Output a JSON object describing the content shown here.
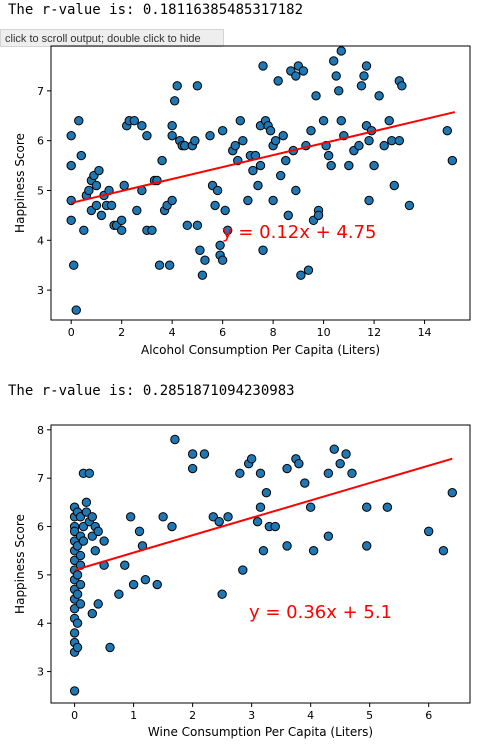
{
  "outputs": [
    {
      "text": "The r-value is: 0.18116385485317182"
    },
    {
      "text": "The r-value is: 0.2851871094230983"
    }
  ],
  "tooltip": "click to scroll output; double click to hide",
  "colors": {
    "points": "#1f77b4",
    "edge": "#000000",
    "fit": "#ff0000"
  },
  "chart_data": [
    {
      "type": "scatter",
      "xlabel": "Alcohol Consumption Per Capita (Liters)",
      "ylabel": "Happiness Score",
      "xlim": [
        -0.8,
        15.8
      ],
      "ylim": [
        2.4,
        7.9
      ],
      "xticks": [
        0,
        2,
        4,
        6,
        8,
        10,
        12,
        14
      ],
      "yticks": [
        3,
        4,
        5,
        6,
        7
      ],
      "fit": {
        "slope": 0.12,
        "intercept": 4.75,
        "x_range": [
          0,
          15.2
        ]
      },
      "equation": "y = 0.12x + 4.75",
      "points": [
        [
          0,
          6.1
        ],
        [
          0,
          5.5
        ],
        [
          0,
          4.8
        ],
        [
          0,
          4.4
        ],
        [
          0.1,
          3.5
        ],
        [
          0.2,
          2.6
        ],
        [
          0.3,
          6.4
        ],
        [
          0.4,
          5.7
        ],
        [
          0.5,
          4.2
        ],
        [
          0.6,
          4.9
        ],
        [
          0.7,
          5.0
        ],
        [
          0.8,
          5.2
        ],
        [
          0.8,
          4.6
        ],
        [
          0.9,
          5.3
        ],
        [
          1.0,
          5.1
        ],
        [
          1.0,
          4.7
        ],
        [
          1.1,
          5.4
        ],
        [
          1.2,
          4.5
        ],
        [
          1.3,
          4.9
        ],
        [
          1.4,
          4.7
        ],
        [
          1.5,
          5.0
        ],
        [
          1.6,
          4.7
        ],
        [
          1.7,
          4.3
        ],
        [
          1.8,
          4.3
        ],
        [
          2.0,
          4.4
        ],
        [
          2.0,
          4.2
        ],
        [
          2.1,
          5.1
        ],
        [
          2.2,
          6.3
        ],
        [
          2.3,
          6.4
        ],
        [
          2.5,
          6.4
        ],
        [
          2.6,
          4.6
        ],
        [
          2.8,
          6.3
        ],
        [
          2.8,
          5.0
        ],
        [
          3.0,
          6.1
        ],
        [
          3.0,
          4.2
        ],
        [
          3.2,
          4.2
        ],
        [
          3.3,
          5.2
        ],
        [
          3.4,
          5.2
        ],
        [
          3.5,
          3.5
        ],
        [
          3.6,
          5.6
        ],
        [
          3.7,
          4.6
        ],
        [
          3.8,
          4.7
        ],
        [
          3.9,
          3.5
        ],
        [
          4.0,
          6.3
        ],
        [
          4.0,
          6.1
        ],
        [
          4.0,
          4.8
        ],
        [
          4.1,
          6.8
        ],
        [
          4.2,
          7.1
        ],
        [
          4.3,
          6.0
        ],
        [
          4.4,
          5.9
        ],
        [
          4.5,
          5.9
        ],
        [
          4.6,
          4.3
        ],
        [
          4.8,
          5.9
        ],
        [
          4.9,
          6.0
        ],
        [
          5.0,
          7.1
        ],
        [
          5.0,
          4.3
        ],
        [
          5.1,
          3.8
        ],
        [
          5.2,
          3.3
        ],
        [
          5.3,
          3.6
        ],
        [
          5.5,
          6.1
        ],
        [
          5.6,
          5.1
        ],
        [
          5.7,
          4.7
        ],
        [
          5.8,
          5.0
        ],
        [
          5.9,
          3.9
        ],
        [
          5.9,
          3.7
        ],
        [
          6.0,
          3.6
        ],
        [
          6.0,
          6.2
        ],
        [
          6.1,
          4.6
        ],
        [
          6.2,
          4.2
        ],
        [
          6.4,
          5.8
        ],
        [
          6.5,
          5.9
        ],
        [
          6.6,
          5.6
        ],
        [
          6.7,
          6.4
        ],
        [
          6.8,
          6.0
        ],
        [
          7.0,
          4.8
        ],
        [
          7.1,
          5.7
        ],
        [
          7.2,
          5.4
        ],
        [
          7.3,
          5.7
        ],
        [
          7.4,
          5.1
        ],
        [
          7.5,
          6.3
        ],
        [
          7.5,
          5.5
        ],
        [
          7.6,
          7.5
        ],
        [
          7.6,
          3.8
        ],
        [
          7.7,
          6.4
        ],
        [
          7.8,
          6.3
        ],
        [
          7.9,
          6.2
        ],
        [
          8.0,
          4.8
        ],
        [
          8.0,
          5.9
        ],
        [
          8.1,
          6.0
        ],
        [
          8.2,
          7.2
        ],
        [
          8.3,
          5.3
        ],
        [
          8.4,
          6.1
        ],
        [
          8.5,
          5.6
        ],
        [
          8.6,
          4.5
        ],
        [
          8.7,
          7.4
        ],
        [
          8.8,
          5.8
        ],
        [
          8.9,
          5.0
        ],
        [
          8.9,
          7.3
        ],
        [
          9.0,
          7.5
        ],
        [
          9.1,
          3.3
        ],
        [
          9.2,
          7.4
        ],
        [
          9.3,
          5.9
        ],
        [
          9.4,
          3.4
        ],
        [
          9.5,
          6.2
        ],
        [
          9.6,
          4.4
        ],
        [
          9.7,
          6.9
        ],
        [
          9.8,
          4.6
        ],
        [
          9.8,
          4.5
        ],
        [
          10.0,
          6.4
        ],
        [
          10.1,
          5.9
        ],
        [
          10.2,
          5.7
        ],
        [
          10.3,
          5.5
        ],
        [
          10.4,
          7.6
        ],
        [
          10.5,
          7.3
        ],
        [
          10.6,
          7.0
        ],
        [
          10.7,
          7.8
        ],
        [
          10.7,
          6.4
        ],
        [
          10.8,
          6.1
        ],
        [
          11.0,
          5.5
        ],
        [
          11.2,
          5.8
        ],
        [
          11.4,
          5.9
        ],
        [
          11.5,
          7.1
        ],
        [
          11.6,
          7.3
        ],
        [
          11.7,
          7.5
        ],
        [
          11.7,
          6.3
        ],
        [
          11.8,
          6.0
        ],
        [
          11.8,
          4.8
        ],
        [
          11.9,
          6.2
        ],
        [
          12.0,
          5.5
        ],
        [
          12.2,
          6.9
        ],
        [
          12.4,
          5.9
        ],
        [
          12.6,
          6.4
        ],
        [
          12.7,
          6.0
        ],
        [
          12.8,
          5.1
        ],
        [
          13.0,
          7.2
        ],
        [
          13.0,
          6.0
        ],
        [
          13.1,
          7.1
        ],
        [
          13.4,
          4.7
        ],
        [
          14.9,
          6.2
        ],
        [
          15.1,
          5.6
        ]
      ]
    },
    {
      "type": "scatter",
      "xlabel": "Wine Consumption Per Capita (Liters)",
      "ylabel": "Happiness Score",
      "xlim": [
        -0.4,
        6.7
      ],
      "ylim": [
        2.35,
        8.1
      ],
      "xticks": [
        0,
        1,
        2,
        3,
        4,
        5,
        6
      ],
      "yticks": [
        3,
        4,
        5,
        6,
        7,
        8
      ],
      "fit": {
        "slope": 0.36,
        "intercept": 5.1,
        "x_range": [
          0,
          6.4
        ]
      },
      "equation": "y = 0.36x + 5.1",
      "points": [
        [
          0,
          6.4
        ],
        [
          0,
          6.2
        ],
        [
          0,
          6.0
        ],
        [
          0,
          5.9
        ],
        [
          0,
          5.7
        ],
        [
          0,
          5.5
        ],
        [
          0,
          5.3
        ],
        [
          0,
          5.1
        ],
        [
          0,
          4.9
        ],
        [
          0,
          4.7
        ],
        [
          0,
          4.5
        ],
        [
          0,
          4.3
        ],
        [
          0,
          4.1
        ],
        [
          0,
          3.8
        ],
        [
          0,
          3.6
        ],
        [
          0,
          3.4
        ],
        [
          0,
          2.6
        ],
        [
          0.05,
          6.3
        ],
        [
          0.05,
          5.6
        ],
        [
          0.05,
          5.0
        ],
        [
          0.05,
          4.6
        ],
        [
          0.05,
          4.0
        ],
        [
          0.05,
          3.5
        ],
        [
          0.1,
          6.2
        ],
        [
          0.1,
          5.8
        ],
        [
          0.1,
          5.4
        ],
        [
          0.1,
          5.2
        ],
        [
          0.1,
          4.8
        ],
        [
          0.1,
          4.4
        ],
        [
          0.15,
          7.1
        ],
        [
          0.15,
          6.0
        ],
        [
          0.15,
          5.7
        ],
        [
          0.2,
          6.3
        ],
        [
          0.2,
          6.5
        ],
        [
          0.25,
          7.1
        ],
        [
          0.25,
          6.1
        ],
        [
          0.3,
          6.2
        ],
        [
          0.3,
          5.8
        ],
        [
          0.3,
          4.2
        ],
        [
          0.35,
          6.0
        ],
        [
          0.35,
          5.5
        ],
        [
          0.4,
          5.9
        ],
        [
          0.4,
          4.4
        ],
        [
          0.5,
          5.7
        ],
        [
          0.5,
          5.2
        ],
        [
          0.6,
          3.5
        ],
        [
          0.75,
          4.6
        ],
        [
          0.85,
          5.2
        ],
        [
          0.95,
          6.2
        ],
        [
          1.0,
          4.8
        ],
        [
          1.1,
          5.9
        ],
        [
          1.15,
          5.6
        ],
        [
          1.2,
          4.9
        ],
        [
          1.4,
          4.8
        ],
        [
          1.5,
          6.2
        ],
        [
          1.65,
          6.0
        ],
        [
          1.7,
          7.8
        ],
        [
          2.0,
          7.2
        ],
        [
          2.0,
          7.5
        ],
        [
          2.2,
          7.5
        ],
        [
          2.35,
          6.2
        ],
        [
          2.45,
          6.1
        ],
        [
          2.5,
          4.6
        ],
        [
          2.6,
          6.2
        ],
        [
          2.8,
          7.1
        ],
        [
          2.85,
          5.1
        ],
        [
          2.95,
          7.3
        ],
        [
          3.0,
          7.4
        ],
        [
          3.1,
          6.1
        ],
        [
          3.15,
          6.4
        ],
        [
          3.15,
          7.1
        ],
        [
          3.2,
          5.5
        ],
        [
          3.25,
          6.7
        ],
        [
          3.3,
          6.0
        ],
        [
          3.4,
          6.0
        ],
        [
          3.6,
          7.2
        ],
        [
          3.6,
          5.6
        ],
        [
          3.75,
          7.4
        ],
        [
          3.8,
          7.3
        ],
        [
          3.9,
          6.9
        ],
        [
          4.0,
          6.4
        ],
        [
          4.05,
          5.5
        ],
        [
          4.3,
          7.1
        ],
        [
          4.3,
          5.8
        ],
        [
          4.4,
          7.6
        ],
        [
          4.5,
          7.3
        ],
        [
          4.6,
          7.5
        ],
        [
          4.7,
          7.1
        ],
        [
          4.95,
          6.4
        ],
        [
          4.95,
          5.6
        ],
        [
          5.3,
          6.4
        ],
        [
          6.0,
          5.9
        ],
        [
          6.25,
          5.5
        ],
        [
          6.4,
          6.7
        ]
      ]
    }
  ]
}
